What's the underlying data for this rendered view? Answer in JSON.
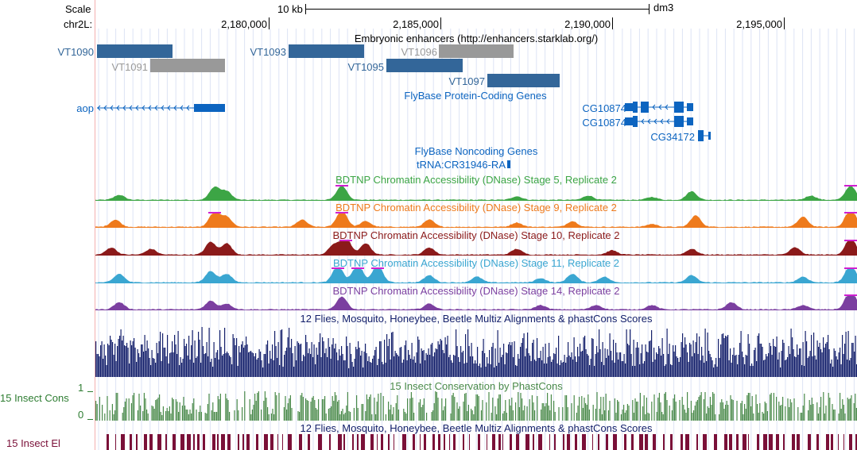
{
  "ruler": {
    "scale_label": "Scale",
    "chrom_label": "chr2L:",
    "scale_bar_label": "10 kb",
    "assembly": "dm3",
    "positions": [
      "2,180,000",
      "2,185,000",
      "2,190,000",
      "2,195,000"
    ]
  },
  "tracks": {
    "enhancers": {
      "title": "Embryonic enhancers (http://enhancers.starklab.org/)",
      "features": [
        {
          "name": "VT1090",
          "color": "#336699"
        },
        {
          "name": "VT1091",
          "color": "#999999"
        },
        {
          "name": "VT1093",
          "color": "#336699"
        },
        {
          "name": "VT1096",
          "color": "#999999"
        },
        {
          "name": "VT1095",
          "color": "#336699"
        },
        {
          "name": "VT1097",
          "color": "#336699"
        }
      ]
    },
    "genes": {
      "title": "FlyBase Protein-Coding Genes",
      "color": "#0c64c0",
      "names": [
        "aop",
        "CG10874",
        "CG10874",
        "CG34172"
      ]
    },
    "noncoding": {
      "title": "FlyBase Noncoding Genes",
      "color": "#0c64c0",
      "names": [
        "tRNA:CR31946-RA"
      ]
    },
    "dnase": [
      {
        "title": "BDTNP Chromatin Accessibility (DNase) Stage 5, Replicate 2",
        "color": "#3ca545"
      },
      {
        "title": "BDTNP Chromatin Accessibility (DNase) Stage 9, Replicate 2",
        "color": "#ee7a1c"
      },
      {
        "title": "BDTNP Chromatin Accessibility (DNase) Stage 10, Replicate 2",
        "color": "#8b1a1a"
      },
      {
        "title": "BDTNP Chromatin Accessibility (DNase) Stage 11, Replicate 2",
        "color": "#3aa6d1"
      },
      {
        "title": "BDTNP Chromatin Accessibility (DNase) Stage 14, Replicate 2",
        "color": "#7b3fa0"
      }
    ],
    "multiz": {
      "title": "12 Flies, Mosquito, Honeybee, Beetle Multiz Alignments & phastCons Scores",
      "color": "#14206b"
    },
    "phastcons": {
      "title": "15 Insect Conservation by PhastCons",
      "left_label": "15 Insect Cons",
      "max_label": "1",
      "min_label": "0",
      "color": "#4a8a4a"
    },
    "elements": {
      "title": "12 Flies, Mosquito, Honeybee, Beetle Multiz Alignments & phastCons Scores",
      "left_label": "15 Insect El",
      "color": "#7a1038"
    }
  }
}
